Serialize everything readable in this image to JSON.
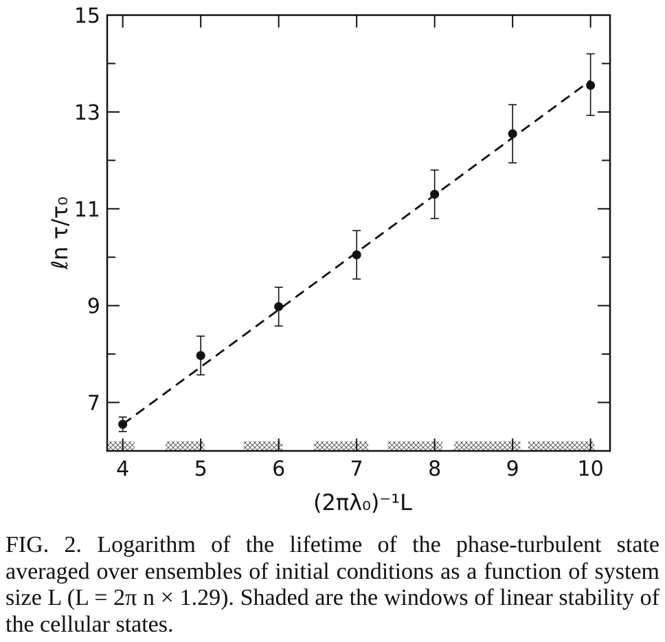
{
  "chart_data": {
    "type": "scatter",
    "x": [
      4,
      5,
      6,
      7,
      8,
      9,
      10
    ],
    "y": [
      6.55,
      7.97,
      8.98,
      10.05,
      11.3,
      12.55,
      13.55
    ],
    "error_low": [
      6.4,
      7.57,
      8.58,
      9.55,
      10.8,
      11.95,
      12.93
    ],
    "error_high": [
      6.7,
      8.37,
      9.38,
      10.55,
      11.8,
      13.15,
      14.2
    ],
    "fit_line": {
      "x": [
        4,
        10
      ],
      "y": [
        6.55,
        13.65
      ],
      "style": "dashed"
    },
    "shaded_windows": [
      [
        3.8,
        4.15
      ],
      [
        4.55,
        5.05
      ],
      [
        5.55,
        6.05
      ],
      [
        6.45,
        7.15
      ],
      [
        7.4,
        8.1
      ],
      [
        8.25,
        9.1
      ],
      [
        9.2,
        10.05
      ]
    ],
    "xlim": [
      3.8,
      10.25
    ],
    "ylim": [
      6,
      15
    ],
    "x_ticks": [
      "4",
      "5",
      "6",
      "7",
      "8",
      "9",
      "10"
    ],
    "y_ticks": [
      "7",
      "9",
      "11",
      "13",
      "15"
    ],
    "xlabel": "(2πλ₀)⁻¹L",
    "ylabel": "ℓn τ/τ₀",
    "grid": false,
    "legend": "none"
  },
  "caption": "FIG. 2. Logarithm of the lifetime of the phase-turbulent state averaged over ensembles of initial conditions as a function of system size L (L = 2π n × 1.29). Shaded are the windows of linear stability of the cellular states."
}
